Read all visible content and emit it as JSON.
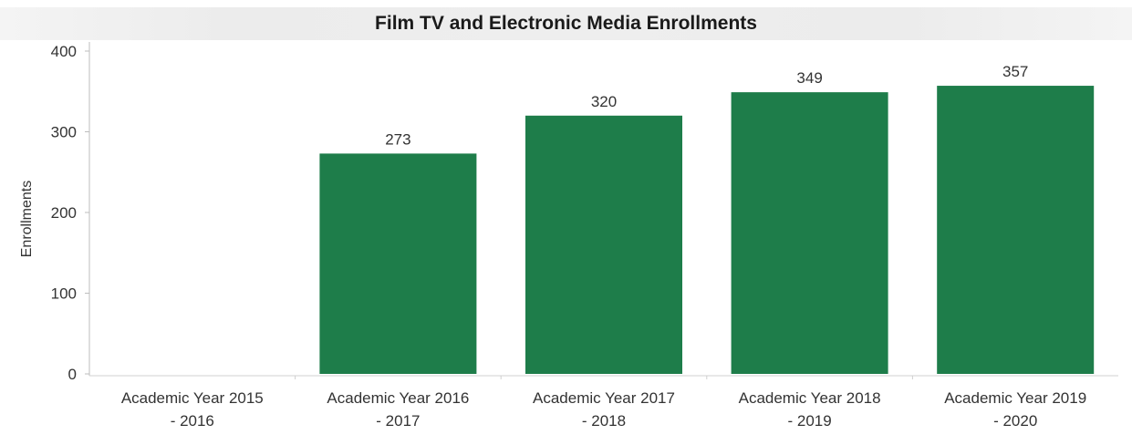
{
  "chart_data": {
    "type": "bar",
    "title": "Film TV and Electronic Media Enrollments",
    "xlabel": "",
    "ylabel": "Enrollments",
    "categories": [
      [
        "Academic Year 2015",
        "- 2016"
      ],
      [
        "Academic Year 2016",
        "- 2017"
      ],
      [
        "Academic Year 2017",
        "- 2018"
      ],
      [
        "Academic Year 2018",
        "- 2019"
      ],
      [
        "Academic Year 2019",
        "- 2020"
      ]
    ],
    "values": [
      null,
      273,
      320,
      349,
      357
    ],
    "data_labels": [
      "",
      "273",
      "320",
      "349",
      "357"
    ],
    "ylim": [
      0,
      400
    ],
    "yticks": [
      0,
      100,
      200,
      300,
      400
    ],
    "ytick_labels": [
      "0",
      "100",
      "200",
      "300",
      "400"
    ],
    "grid": false,
    "legend": "none",
    "bar_color": "#1e7d4a"
  }
}
